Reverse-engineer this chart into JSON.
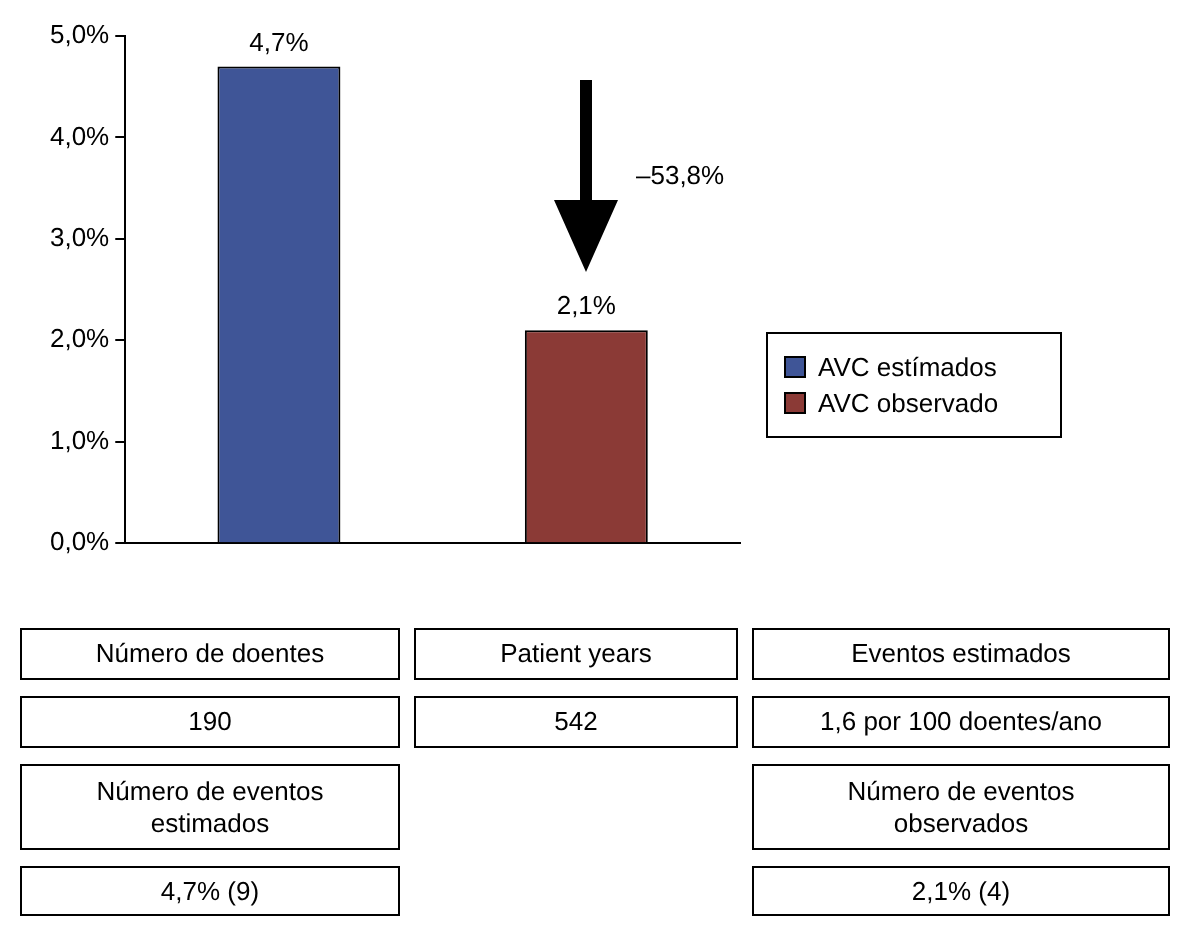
{
  "chart_data": {
    "type": "bar",
    "categories": [
      null,
      null
    ],
    "series": [
      {
        "name": "AVC estímados",
        "color": "#3f5597",
        "values": [
          4.7,
          null
        ],
        "value_labels": [
          "4,7%",
          null
        ]
      },
      {
        "name": "AVC observado",
        "color": "#8b3a36",
        "values": [
          null,
          2.1
        ],
        "value_labels": [
          null,
          "2,1%"
        ]
      }
    ],
    "ylim": [
      0,
      5
    ],
    "yticks": [
      {
        "value": 0,
        "label": "0,0%"
      },
      {
        "value": 1,
        "label": "1,0%"
      },
      {
        "value": 2,
        "label": "2,0%"
      },
      {
        "value": 3,
        "label": "3,0%"
      },
      {
        "value": 4,
        "label": "4,0%"
      },
      {
        "value": 5,
        "label": "5,0%"
      }
    ],
    "grid": false,
    "legend": "right",
    "annotations": [
      "–53,8%",
      "Número de doentes",
      "Patient years",
      "Eventos estimados",
      "190",
      "542",
      "1,6 por 100 doentes/ano",
      "Número de eventos estimados",
      "Número de eventos observados",
      "4,7% (9)",
      "2,1% (4)"
    ]
  }
}
